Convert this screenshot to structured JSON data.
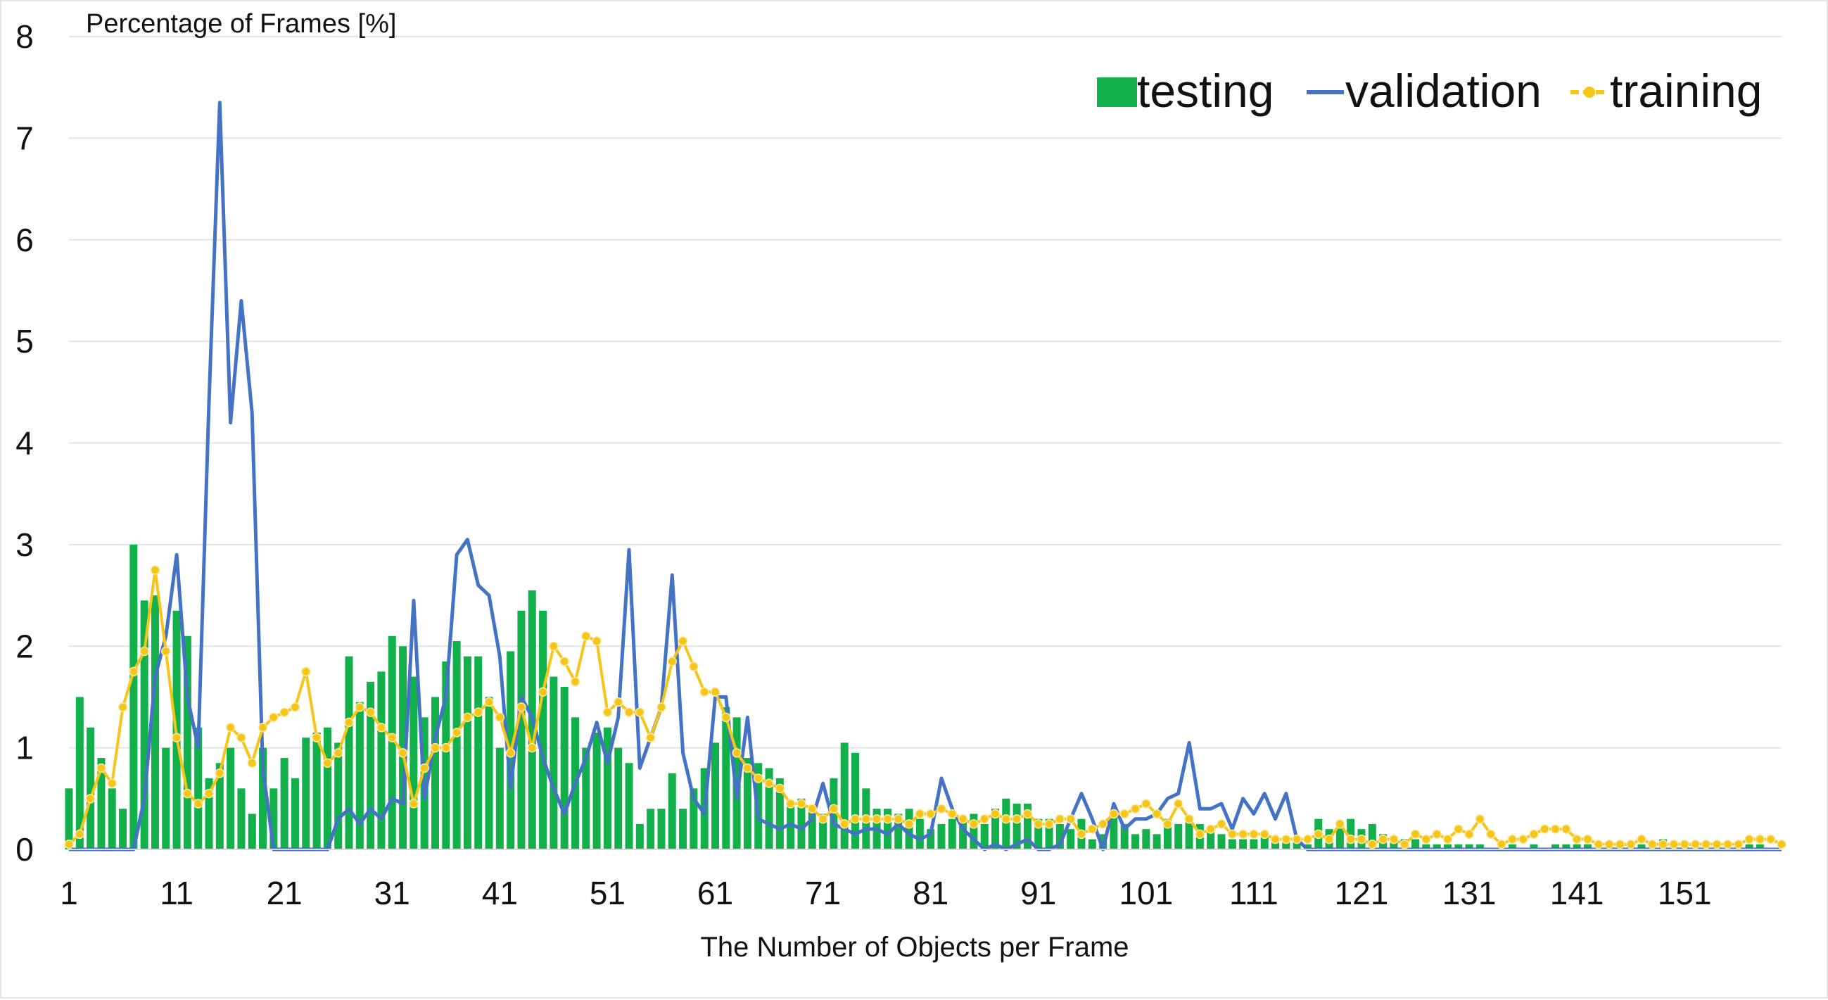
{
  "chart_data": {
    "type": "bar",
    "title": "",
    "ylabel": "Percentage of Frames [%]",
    "xlabel": "The Number of Objects per Frame",
    "ylim": [
      0,
      8
    ],
    "yticks": [
      0,
      1,
      2,
      3,
      4,
      5,
      6,
      7,
      8
    ],
    "xlim": [
      1,
      160
    ],
    "xticks": [
      1,
      11,
      21,
      31,
      41,
      51,
      61,
      71,
      81,
      91,
      101,
      111,
      121,
      131,
      141,
      151
    ],
    "grid": "horizontal",
    "legend": {
      "placement": "top-right",
      "entries": [
        "testing",
        "validation",
        "training"
      ]
    },
    "colors": {
      "testing": "#12b04a",
      "validation": "#4472c4",
      "training": "#f5c518"
    },
    "series": [
      {
        "name": "testing",
        "type": "bar",
        "x_start": 1,
        "values": [
          0.6,
          1.5,
          1.2,
          0.9,
          0.6,
          0.4,
          3.0,
          2.45,
          2.5,
          1.0,
          2.35,
          2.1,
          1.2,
          0.7,
          0.85,
          1.0,
          0.6,
          0.35,
          1.0,
          0.6,
          0.9,
          0.7,
          1.1,
          1.15,
          1.2,
          1.05,
          1.9,
          1.45,
          1.65,
          1.75,
          2.1,
          2.0,
          1.7,
          1.3,
          1.5,
          1.85,
          2.05,
          1.9,
          1.9,
          1.5,
          1.0,
          1.95,
          2.35,
          2.55,
          2.35,
          1.7,
          1.6,
          1.3,
          1.0,
          1.15,
          1.2,
          1.0,
          0.85,
          0.25,
          0.4,
          0.4,
          0.75,
          0.4,
          0.6,
          0.8,
          1.05,
          1.4,
          1.3,
          0.9,
          0.85,
          0.8,
          0.7,
          0.45,
          0.5,
          0.4,
          0.35,
          0.7,
          1.05,
          0.95,
          0.6,
          0.4,
          0.4,
          0.35,
          0.4,
          0.3,
          0.2,
          0.25,
          0.3,
          0.3,
          0.35,
          0.25,
          0.4,
          0.5,
          0.45,
          0.45,
          0.3,
          0.3,
          0.25,
          0.2,
          0.3,
          0.1,
          0.15,
          0.35,
          0.25,
          0.15,
          0.2,
          0.15,
          0.3,
          0.25,
          0.3,
          0.25,
          0.2,
          0.15,
          0.1,
          0.1,
          0.1,
          0.15,
          0.1,
          0.1,
          0.1,
          0.05,
          0.3,
          0.2,
          0.25,
          0.3,
          0.2,
          0.25,
          0.15,
          0.1,
          0.1,
          0.1,
          0.05,
          0.05,
          0.05,
          0.05,
          0.05,
          0.05,
          0.0,
          0.0,
          0.05,
          0.0,
          0.05,
          0.0,
          0.05,
          0.05,
          0.05,
          0.05,
          0.0,
          0.05,
          0.05,
          0.05,
          0.05,
          0.05,
          0.1,
          0.05,
          0.05,
          0.0,
          0.0,
          0.05,
          0.0,
          0.05,
          0.05,
          0.05
        ]
      },
      {
        "name": "validation",
        "type": "line",
        "x_start": 1,
        "values": [
          0.0,
          0.0,
          0.0,
          0.0,
          0.0,
          0.0,
          0.0,
          0.5,
          1.7,
          2.1,
          2.9,
          1.5,
          1.0,
          4.4,
          7.35,
          4.2,
          5.4,
          4.3,
          0.8,
          0.0,
          0.0,
          0.0,
          0.0,
          0.0,
          0.0,
          0.3,
          0.4,
          0.25,
          0.4,
          0.3,
          0.5,
          0.45,
          2.45,
          0.5,
          1.1,
          1.5,
          2.9,
          3.05,
          2.6,
          2.5,
          1.9,
          0.6,
          1.5,
          1.3,
          0.9,
          0.6,
          0.35,
          0.65,
          0.9,
          1.25,
          0.85,
          1.3,
          2.95,
          0.8,
          1.1,
          1.4,
          2.7,
          0.95,
          0.5,
          0.35,
          1.5,
          1.5,
          0.5,
          1.3,
          0.3,
          0.25,
          0.2,
          0.25,
          0.2,
          0.3,
          0.65,
          0.25,
          0.2,
          0.15,
          0.2,
          0.2,
          0.15,
          0.25,
          0.15,
          0.1,
          0.15,
          0.7,
          0.4,
          0.2,
          0.1,
          0.0,
          0.05,
          0.0,
          0.05,
          0.1,
          0.0,
          0.0,
          0.05,
          0.3,
          0.55,
          0.3,
          0.0,
          0.45,
          0.2,
          0.3,
          0.3,
          0.35,
          0.5,
          0.55,
          1.05,
          0.4,
          0.4,
          0.45,
          0.2,
          0.5,
          0.35,
          0.55,
          0.3,
          0.55,
          0.1,
          0.0,
          0.0,
          0.0,
          0.0,
          0.0,
          0.0,
          0.0,
          0.0,
          0.0,
          0.0,
          0.0,
          0.0,
          0.0,
          0.0,
          0.0,
          0.0,
          0.0,
          0.0,
          0.0,
          0.0,
          0.0,
          0.0,
          0.0,
          0.0,
          0.0,
          0.0,
          0.0,
          0.0,
          0.0,
          0.0,
          0.0,
          0.0,
          0.0,
          0.0,
          0.0,
          0.0,
          0.0,
          0.0,
          0.0,
          0.0,
          0.0,
          0.0,
          0.0,
          0.0,
          0.0
        ]
      },
      {
        "name": "training",
        "type": "line",
        "x_start": 1,
        "values": [
          0.05,
          0.15,
          0.5,
          0.8,
          0.65,
          1.4,
          1.75,
          1.95,
          2.75,
          1.95,
          1.1,
          0.55,
          0.45,
          0.55,
          0.75,
          1.2,
          1.1,
          0.85,
          1.2,
          1.3,
          1.35,
          1.4,
          1.75,
          1.1,
          0.85,
          0.95,
          1.25,
          1.4,
          1.35,
          1.2,
          1.1,
          0.95,
          0.45,
          0.8,
          1.0,
          1.0,
          1.15,
          1.3,
          1.35,
          1.45,
          1.3,
          0.95,
          1.4,
          1.0,
          1.55,
          2.0,
          1.85,
          1.65,
          2.1,
          2.05,
          1.35,
          1.45,
          1.35,
          1.35,
          1.1,
          1.4,
          1.85,
          2.05,
          1.8,
          1.55,
          1.55,
          1.3,
          0.95,
          0.8,
          0.7,
          0.65,
          0.6,
          0.45,
          0.45,
          0.4,
          0.3,
          0.4,
          0.25,
          0.3,
          0.3,
          0.3,
          0.3,
          0.3,
          0.25,
          0.35,
          0.35,
          0.4,
          0.35,
          0.3,
          0.25,
          0.3,
          0.35,
          0.3,
          0.3,
          0.35,
          0.25,
          0.25,
          0.3,
          0.3,
          0.15,
          0.2,
          0.25,
          0.35,
          0.35,
          0.4,
          0.45,
          0.35,
          0.25,
          0.45,
          0.3,
          0.15,
          0.2,
          0.25,
          0.15,
          0.15,
          0.15,
          0.15,
          0.1,
          0.1,
          0.1,
          0.1,
          0.15,
          0.1,
          0.25,
          0.1,
          0.1,
          0.05,
          0.1,
          0.1,
          0.05,
          0.15,
          0.1,
          0.15,
          0.1,
          0.2,
          0.15,
          0.3,
          0.15,
          0.05,
          0.1,
          0.1,
          0.15,
          0.2,
          0.2,
          0.2,
          0.1,
          0.1,
          0.05,
          0.05,
          0.05,
          0.05,
          0.1,
          0.05,
          0.05,
          0.05,
          0.05,
          0.05,
          0.05,
          0.05,
          0.05,
          0.05,
          0.1,
          0.1,
          0.1,
          0.05
        ]
      }
    ]
  }
}
